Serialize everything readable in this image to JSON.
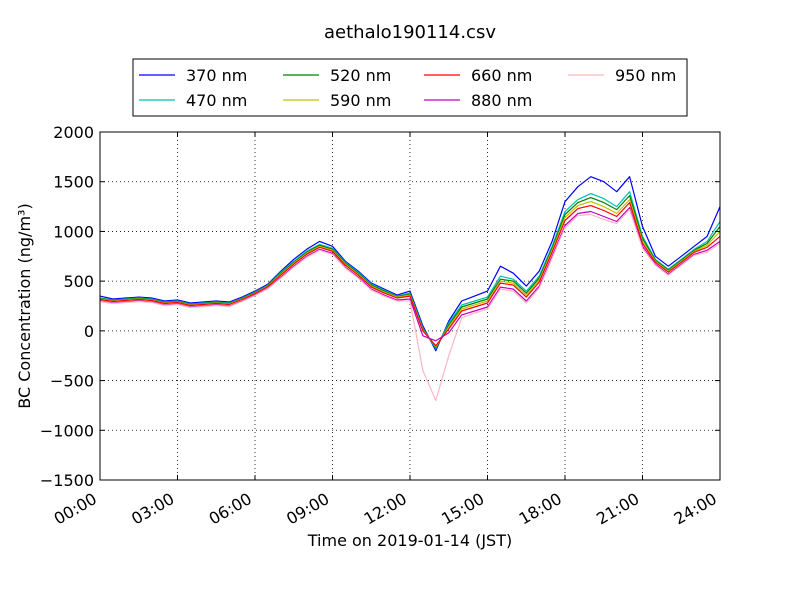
{
  "chart_data": {
    "type": "line",
    "title": "aethalo190114.csv",
    "xlabel": "Time on 2019-01-14 (JST)",
    "ylabel": "BC Concentration (ng/m³)",
    "xlim": [
      0,
      24
    ],
    "ylim": [
      -1500,
      2000
    ],
    "x_ticks": [
      0,
      3,
      6,
      9,
      12,
      15,
      18,
      21,
      24
    ],
    "x_tick_labels": [
      "00:00",
      "03:00",
      "06:00",
      "09:00",
      "12:00",
      "15:00",
      "18:00",
      "21:00",
      "24:00"
    ],
    "y_ticks": [
      -1500,
      -1000,
      -500,
      0,
      500,
      1000,
      1500,
      2000
    ],
    "y_tick_labels": [
      "−1500",
      "−1000",
      "−500",
      "0",
      "500",
      "1000",
      "1500",
      "2000"
    ],
    "grid": true,
    "legend_position": "top-center",
    "x": [
      0,
      0.5,
      1,
      1.5,
      2,
      2.5,
      3,
      3.5,
      4,
      4.5,
      5,
      5.5,
      6,
      6.5,
      7,
      7.5,
      8,
      8.5,
      9,
      9.5,
      10,
      10.5,
      11,
      11.5,
      12,
      12.5,
      13,
      13.5,
      14,
      14.5,
      15,
      15.5,
      16,
      16.5,
      17,
      17.5,
      18,
      18.5,
      19,
      19.5,
      20,
      20.5,
      21,
      21.5,
      22,
      22.5,
      23,
      23.5,
      24
    ],
    "series": [
      {
        "name": "370 nm",
        "color": "#0000ff",
        "values": [
          350,
          320,
          330,
          340,
          330,
          300,
          310,
          280,
          290,
          300,
          290,
          340,
          400,
          470,
          600,
          720,
          820,
          900,
          850,
          700,
          600,
          480,
          420,
          360,
          400,
          50,
          -200,
          100,
          300,
          350,
          400,
          650,
          580,
          450,
          600,
          900,
          1300,
          1450,
          1550,
          1500,
          1400,
          1550,
          1050,
          750,
          650,
          750,
          850,
          950,
          1250
        ]
      },
      {
        "name": "470 nm",
        "color": "#00c0b0",
        "values": [
          330,
          310,
          320,
          330,
          320,
          290,
          300,
          270,
          280,
          290,
          280,
          330,
          390,
          460,
          590,
          700,
          800,
          870,
          830,
          690,
          590,
          470,
          410,
          350,
          380,
          30,
          -180,
          80,
          260,
          300,
          340,
          550,
          520,
          400,
          550,
          850,
          1200,
          1320,
          1380,
          1330,
          1250,
          1400,
          950,
          720,
          620,
          720,
          820,
          900,
          1100
        ]
      },
      {
        "name": "520 nm",
        "color": "#008000",
        "values": [
          325,
          305,
          315,
          325,
          315,
          285,
          295,
          265,
          275,
          285,
          275,
          325,
          385,
          455,
          580,
          690,
          790,
          860,
          820,
          680,
          580,
          460,
          400,
          345,
          370,
          20,
          -170,
          60,
          240,
          280,
          320,
          520,
          500,
          380,
          530,
          830,
          1170,
          1290,
          1340,
          1290,
          1220,
          1360,
          930,
          710,
          610,
          710,
          810,
          880,
          1050
        ]
      },
      {
        "name": "590 nm",
        "color": "#c0c000",
        "values": [
          320,
          300,
          310,
          320,
          310,
          280,
          290,
          260,
          270,
          280,
          270,
          320,
          380,
          450,
          570,
          680,
          780,
          850,
          810,
          670,
          570,
          450,
          390,
          340,
          360,
          10,
          -160,
          40,
          220,
          260,
          300,
          500,
          480,
          360,
          510,
          810,
          1140,
          1260,
          1300,
          1250,
          1180,
          1320,
          900,
          700,
          600,
          700,
          800,
          860,
          1000
        ]
      },
      {
        "name": "660 nm",
        "color": "#ff0000",
        "values": [
          315,
          295,
          305,
          315,
          305,
          275,
          285,
          255,
          265,
          275,
          265,
          315,
          375,
          445,
          560,
          670,
          770,
          840,
          800,
          660,
          560,
          440,
          380,
          330,
          350,
          0,
          -150,
          20,
          200,
          240,
          280,
          480,
          460,
          340,
          490,
          790,
          1110,
          1230,
          1260,
          1210,
          1150,
          1290,
          880,
          690,
          590,
          690,
          790,
          840,
          950
        ]
      },
      {
        "name": "880 nm",
        "color": "#c000c0",
        "values": [
          300,
          280,
          290,
          300,
          290,
          260,
          270,
          240,
          250,
          260,
          250,
          300,
          360,
          430,
          540,
          650,
          750,
          820,
          780,
          640,
          540,
          420,
          360,
          310,
          320,
          -50,
          -100,
          -20,
          160,
          200,
          240,
          440,
          420,
          300,
          450,
          750,
          1060,
          1180,
          1200,
          1150,
          1100,
          1240,
          850,
          670,
          570,
          670,
          770,
          810,
          900
        ]
      },
      {
        "name": "950 nm",
        "color": "#ffb6c1",
        "values": [
          295,
          275,
          285,
          295,
          285,
          255,
          265,
          235,
          245,
          255,
          245,
          295,
          355,
          425,
          530,
          640,
          740,
          810,
          770,
          630,
          530,
          410,
          350,
          300,
          300,
          -400,
          -700,
          -250,
          130,
          180,
          220,
          420,
          400,
          280,
          430,
          730,
          1040,
          1160,
          1170,
          1120,
          1080,
          1220,
          830,
          660,
          560,
          660,
          760,
          790,
          880
        ]
      }
    ]
  }
}
